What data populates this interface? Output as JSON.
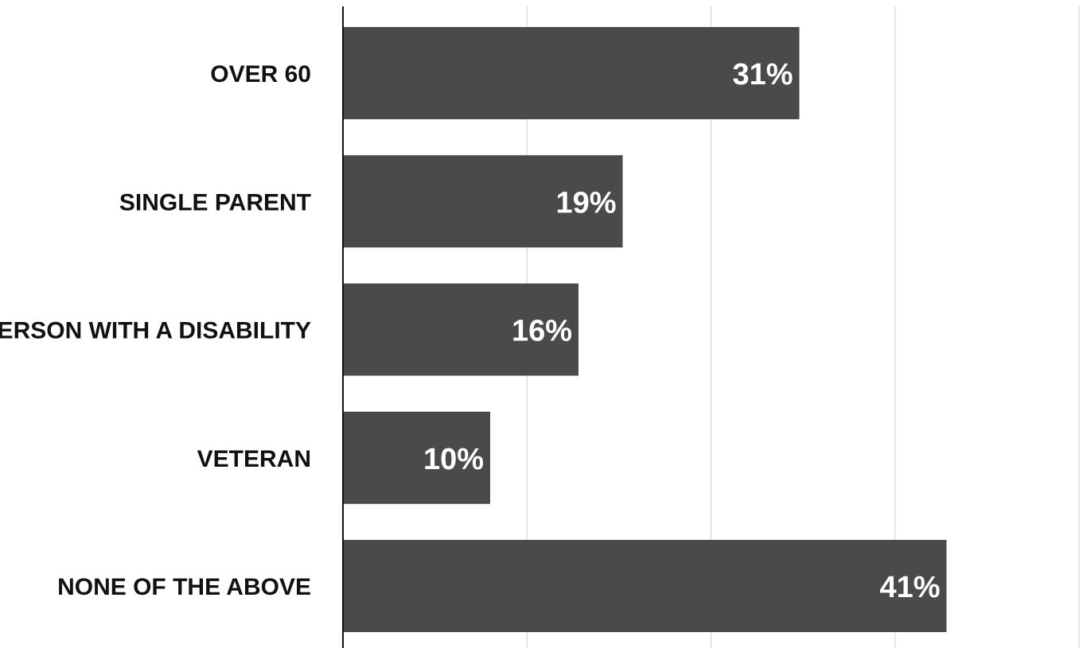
{
  "chart_data": {
    "type": "bar",
    "orientation": "horizontal",
    "categories": [
      "Over 60",
      "Single parent",
      "Person with a disability",
      "Veteran",
      "None of the above"
    ],
    "values": [
      31,
      19,
      16,
      10,
      41
    ],
    "value_labels": [
      "31%",
      "19%",
      "16%",
      "10%",
      "41%"
    ],
    "unit": "%",
    "xlim": [
      0,
      50
    ],
    "grid": true,
    "title": "",
    "xlabel": "",
    "ylabel": "",
    "colors": {
      "bar": "#4a4a4a",
      "value_text": "#ffffff",
      "category_text": "#111111",
      "grid": "#d0d0d0",
      "axis": "#111111"
    }
  }
}
